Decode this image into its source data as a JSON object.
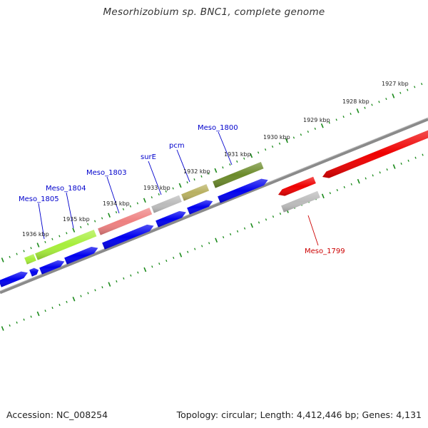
{
  "title": "Mesorhizobium sp. BNC1, complete genome",
  "footer": {
    "accession": "Accession: NC_008254",
    "topology": "Topology: circular; Length: 4,412,446 bp; Genes: 4,131"
  },
  "ticks": [
    {
      "label": "1927 kbp"
    },
    {
      "label": "1928 kbp"
    },
    {
      "label": "1929 kbp"
    },
    {
      "label": "1930 kbp"
    },
    {
      "label": "1931 kbp"
    },
    {
      "label": "1932 kbp"
    },
    {
      "label": "1933 kbp"
    },
    {
      "label": "1934 kbp"
    },
    {
      "label": "1935 kbp"
    },
    {
      "label": "1936 kbp"
    }
  ],
  "gene_labels": [
    {
      "name": "Meso_1805",
      "color": "#0000cc"
    },
    {
      "name": "Meso_1804",
      "color": "#0000cc"
    },
    {
      "name": "Meso_1803",
      "color": "#0000cc"
    },
    {
      "name": "surE",
      "color": "#0000cc"
    },
    {
      "name": "pcm",
      "color": "#0000cc"
    },
    {
      "name": "Meso_1800",
      "color": "#0000cc"
    },
    {
      "name": "Meso_1799",
      "color": "#cc0000"
    }
  ],
  "colors": {
    "backbone": "#8a8a8a",
    "tick": "#1a8a1a",
    "forward_cds": "#0000ee",
    "reverse_cds": "#ee0000",
    "cog_light_green": "#a6ee3a",
    "cog_pink": "#ee8080",
    "cog_gray": "#bbbbbb",
    "cog_khaki": "#b8b060",
    "cog_olive": "#6b8a2a"
  }
}
